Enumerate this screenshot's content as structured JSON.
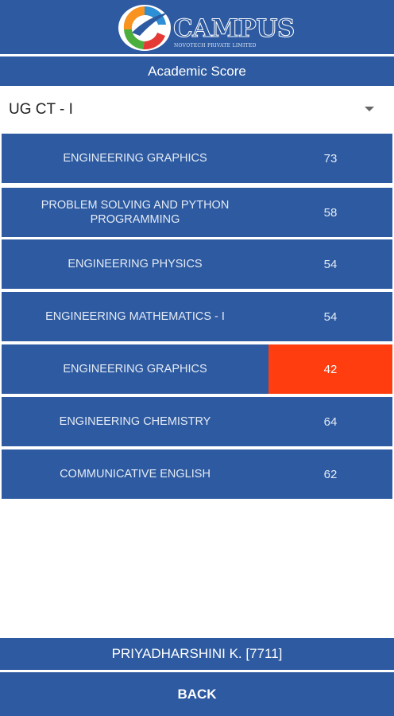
{
  "header": {
    "logo_word": "CAMPUS",
    "logo_tagline": "NOVOTECH PRIVATE LIMITED"
  },
  "title": "Academic Score",
  "exam_select": {
    "selected": "UG CT - I"
  },
  "scores": [
    {
      "subject": "ENGINEERING GRAPHICS",
      "score": "73"
    },
    {
      "subject": "PROBLEM SOLVING AND PYTHON PROGRAMMING",
      "score": "58"
    },
    {
      "subject": "ENGINEERING PHYSICS",
      "score": "54"
    },
    {
      "subject": "ENGINEERING MATHEMATICS - I",
      "score": "54"
    },
    {
      "subject": "ENGINEERING GRAPHICS",
      "score": "42",
      "highlight": true
    },
    {
      "subject": "ENGINEERING CHEMISTRY",
      "score": "64"
    },
    {
      "subject": "COMMUNICATIVE ENGLISH",
      "score": "62"
    }
  ],
  "user": "PRIYADHARSHINI K. [7711]",
  "back_label": "BACK",
  "colors": {
    "primary": "#2d5aa0",
    "alert": "#ff3d0f"
  }
}
